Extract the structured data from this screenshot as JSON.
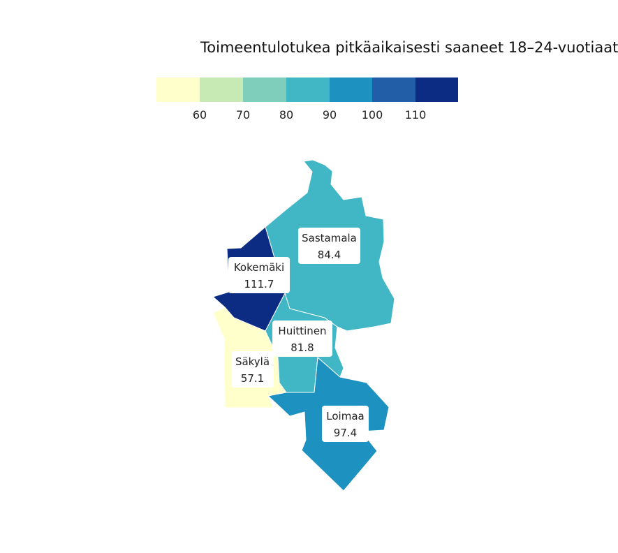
{
  "title": "Toimeentulotukea pitkäaikaisesti saaneet 18–24-vuotiaat",
  "legend": {
    "colors": [
      "#ffffcc",
      "#c7e9b4",
      "#7fcdbb",
      "#41b6c4",
      "#1d91c0",
      "#225ea8",
      "#0c2c84"
    ],
    "ticks": [
      "60",
      "70",
      "80",
      "90",
      "100",
      "110"
    ]
  },
  "regions": [
    {
      "name": "Sastamala",
      "value": "84.4",
      "color": "#41b6c4"
    },
    {
      "name": "Kokemäki",
      "value": "111.7",
      "color": "#0c2c84"
    },
    {
      "name": "Huittinen",
      "value": "81.8",
      "color": "#41b6c4"
    },
    {
      "name": "Säkylä",
      "value": "57.1",
      "color": "#ffffcc"
    },
    {
      "name": "Loimaa",
      "value": "97.4",
      "color": "#1d91c0"
    }
  ]
}
